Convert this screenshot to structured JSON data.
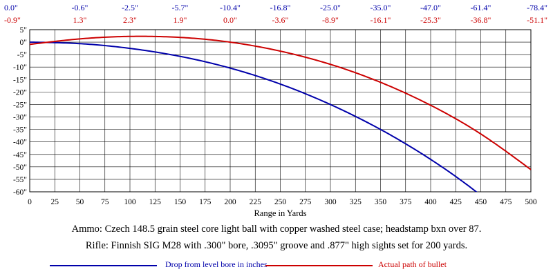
{
  "chart_data": {
    "type": "line",
    "xlabel": "Range in Yards",
    "ylabel": "",
    "xlim": [
      0,
      500
    ],
    "ylim": [
      -60,
      5
    ],
    "x_ticks": [
      0,
      25,
      50,
      75,
      100,
      125,
      150,
      175,
      200,
      225,
      250,
      275,
      300,
      325,
      350,
      375,
      400,
      425,
      450,
      475,
      500
    ],
    "y_ticks": [
      5,
      0,
      -5,
      -10,
      -15,
      -20,
      -25,
      -30,
      -35,
      -40,
      -45,
      -50,
      -55,
      -60
    ],
    "y_tick_labels": [
      "5\"",
      "0\"",
      "-5\"",
      "-10\"",
      "-15\"",
      "-20\"",
      "-25\"",
      "-30\"",
      "-35\"",
      "-40\"",
      "-45\"",
      "-50\"",
      "-55\"",
      "-60\""
    ],
    "grid": true,
    "top_tables": {
      "x_positions": [
        0,
        50,
        100,
        150,
        200,
        250,
        300,
        350,
        400,
        450,
        500
      ],
      "drop_row": [
        "0.0\"",
        "-0.6\"",
        "-2.5\"",
        "-5.7\"",
        "-10.4\"",
        "-16.8\"",
        "-25.0\"",
        "-35.0\"",
        "-47.0\"",
        "-61.4\"",
        "-78.4\""
      ],
      "path_row": [
        "-0.9\"",
        "1.3\"",
        "2.3\"",
        "1.9\"",
        "0.0\"",
        "-3.6\"",
        "-8.9\"",
        "-16.1\"",
        "-25.3\"",
        "-36.8\"",
        "-51.1\""
      ]
    },
    "series": [
      {
        "name": "Drop from level bore in inches",
        "color": "#0000aa",
        "x": [
          0,
          50,
          100,
          150,
          200,
          250,
          300,
          350,
          400,
          450,
          500
        ],
        "y": [
          0.0,
          -0.6,
          -2.5,
          -5.7,
          -10.4,
          -16.8,
          -25.0,
          -35.0,
          -47.0,
          -61.4,
          -78.4
        ]
      },
      {
        "name": "Actual path of bullet",
        "color": "#cc0000",
        "x": [
          0,
          50,
          100,
          150,
          200,
          250,
          300,
          350,
          400,
          450,
          500
        ],
        "y": [
          -0.9,
          1.3,
          2.3,
          1.9,
          0.0,
          -3.6,
          -8.9,
          -16.1,
          -25.3,
          -36.8,
          -51.1
        ]
      }
    ]
  },
  "caption": {
    "ammo": "Ammo:  Czech 148.5 grain steel core light ball with copper washed steel case; headstamp bxn over 87.",
    "rifle": "Rifle:  Finnish SIG M28 with .300\" bore, .3095\" groove and .877\" high sights set for 200 yards."
  },
  "legend": {
    "drop_label": "Drop from level bore in inches",
    "path_label": "Actual path of bullet"
  }
}
